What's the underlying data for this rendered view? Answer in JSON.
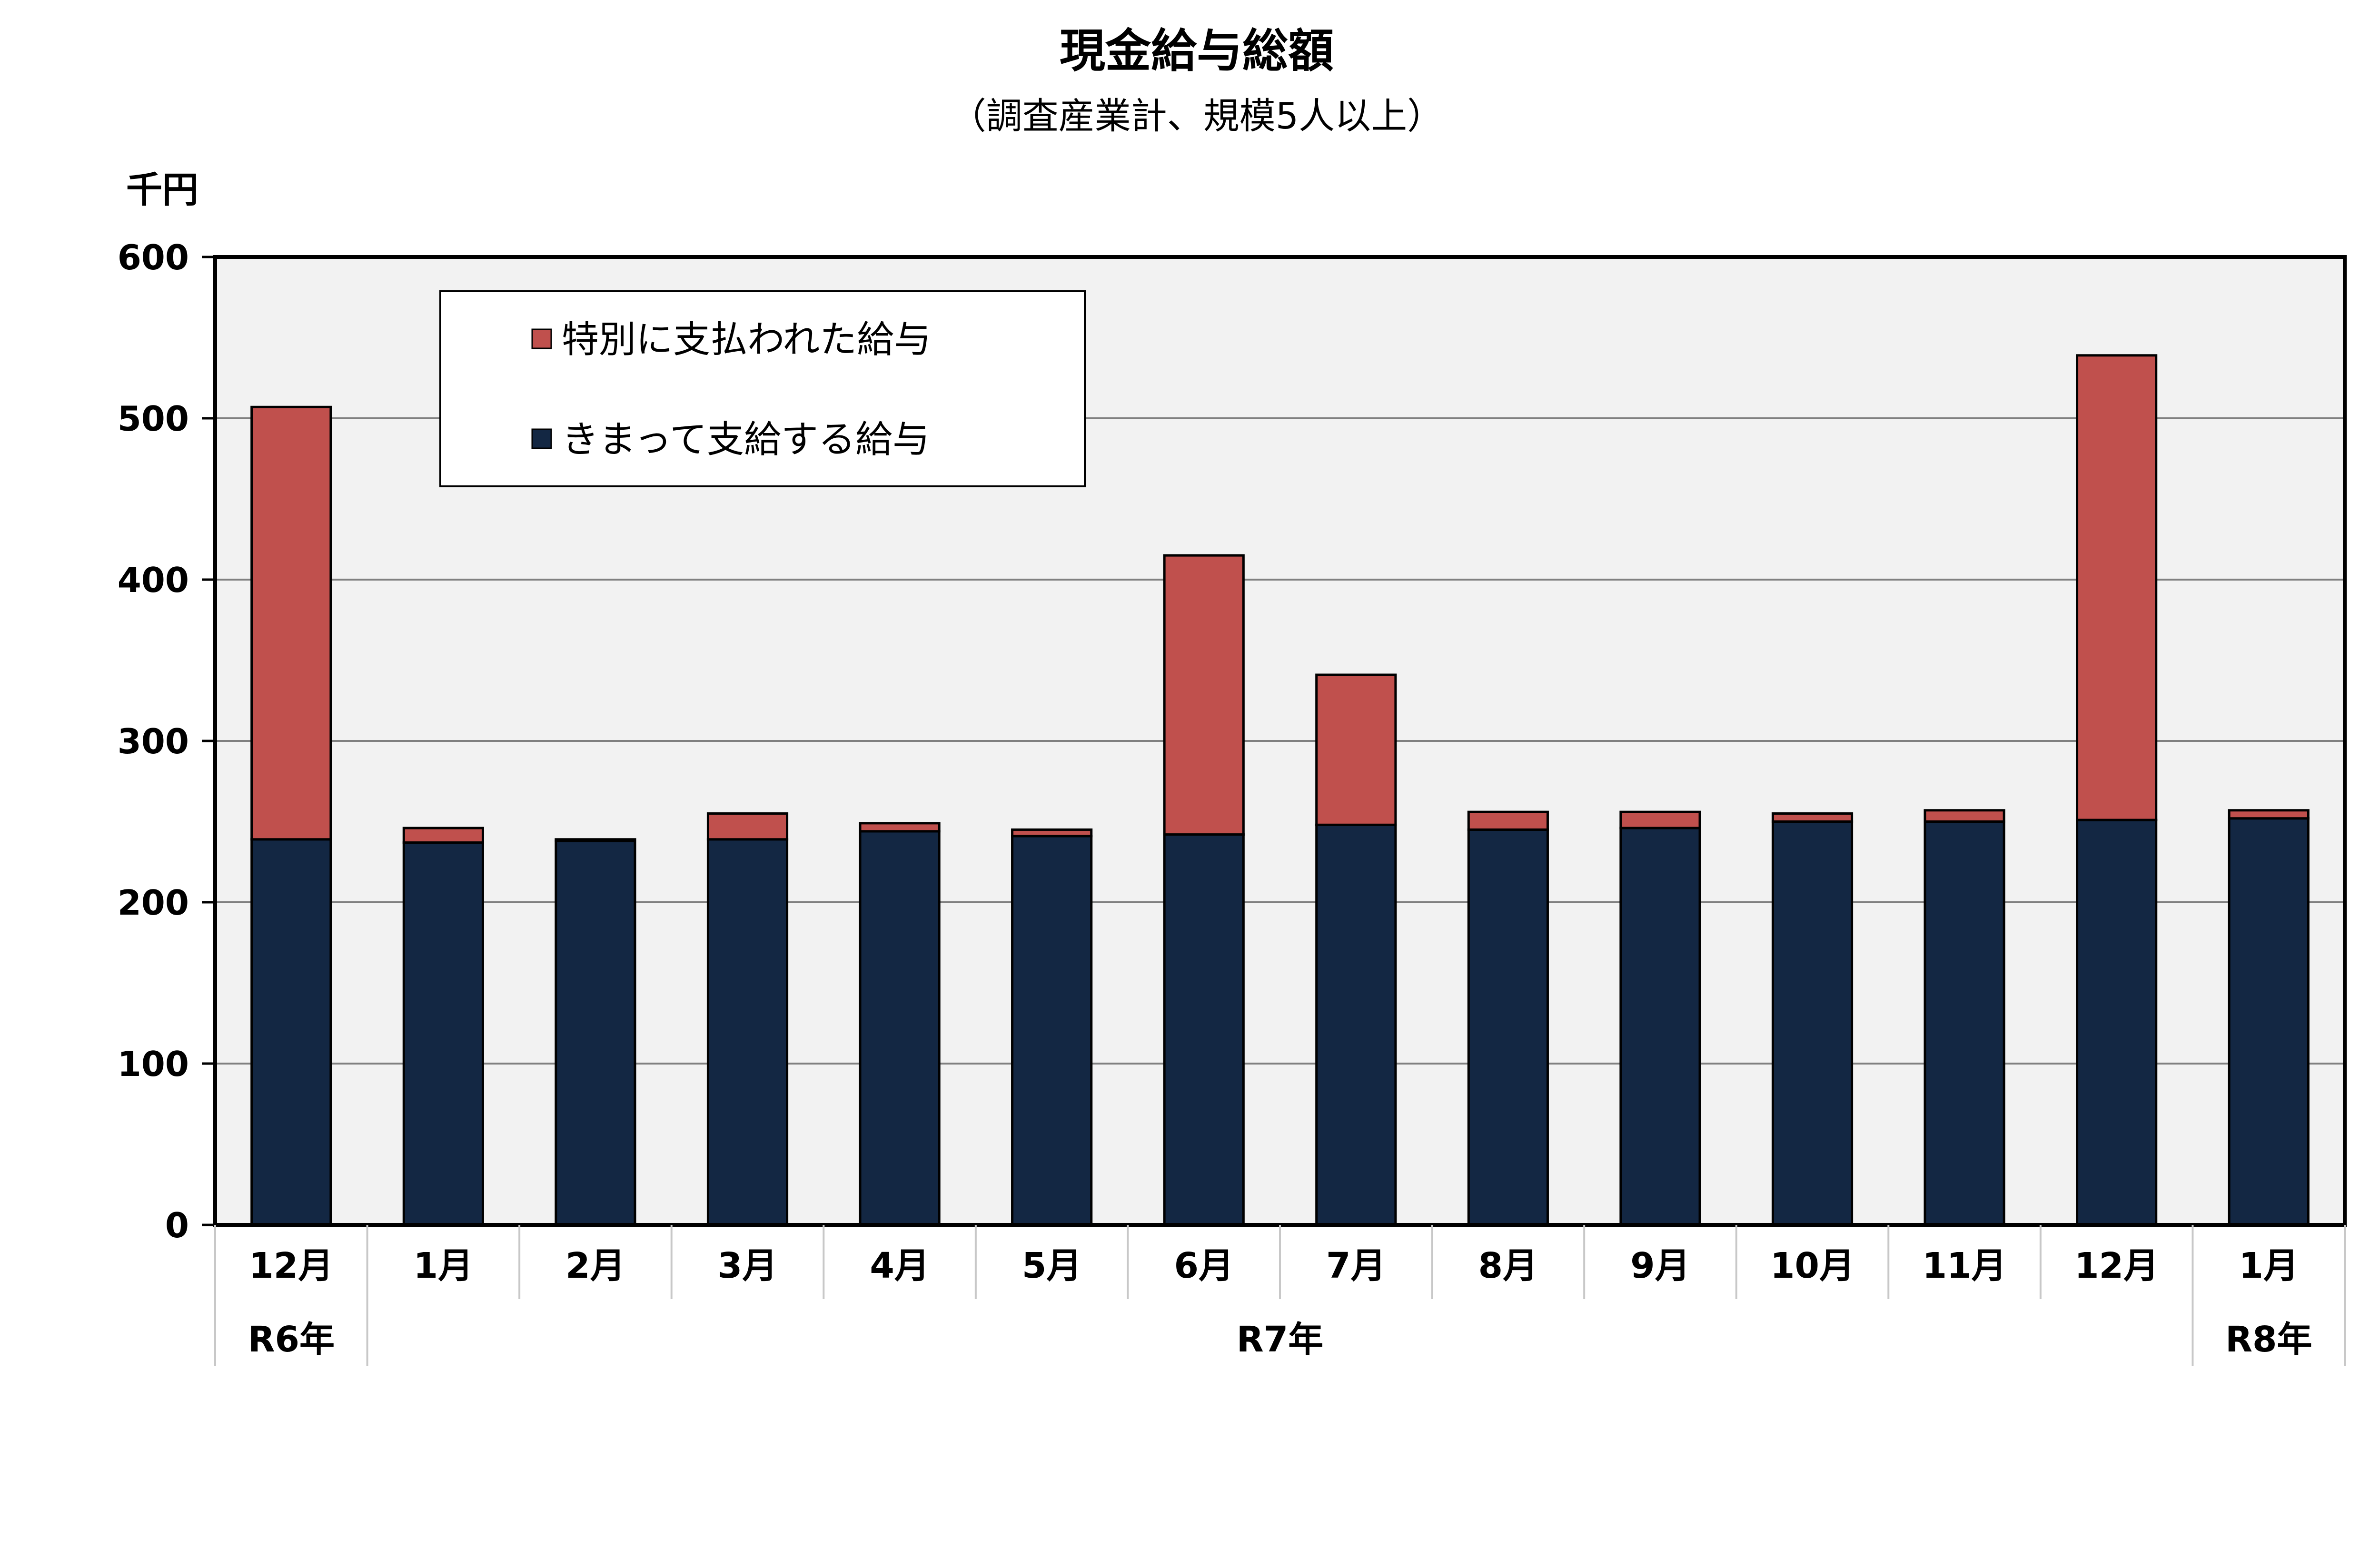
{
  "chart_data": {
    "type": "bar",
    "stacked": true,
    "title": "現金給与総額",
    "subtitle": "（調査産業計、規模5人以上）",
    "ylabel": "千円",
    "ylim": [
      0,
      600
    ],
    "yticks": [
      "0",
      "100",
      "200",
      "300",
      "400",
      "500",
      "600"
    ],
    "grid": true,
    "legend_position": "top-left",
    "categories": [
      "12月",
      "1月",
      "2月",
      "3月",
      "4月",
      "5月",
      "6月",
      "7月",
      "8月",
      "9月",
      "10月",
      "11月",
      "12月",
      "1月"
    ],
    "year_groups": [
      {
        "label": "R6年",
        "start": 0,
        "end": 0
      },
      {
        "label": "R7年",
        "start": 1,
        "end": 12
      },
      {
        "label": "R8年",
        "start": 13,
        "end": 13
      }
    ],
    "series": [
      {
        "name": "きまって支給する給与",
        "color": "#132743",
        "values": [
          239,
          237,
          238,
          239,
          244,
          241,
          242,
          248,
          245,
          246,
          250,
          250,
          251,
          252
        ]
      },
      {
        "name": "特別に支払われた給与",
        "color": "#c0504d",
        "values": [
          268,
          9,
          1,
          16,
          5,
          4,
          173,
          93,
          11,
          10,
          5,
          7,
          288,
          5
        ]
      }
    ]
  }
}
